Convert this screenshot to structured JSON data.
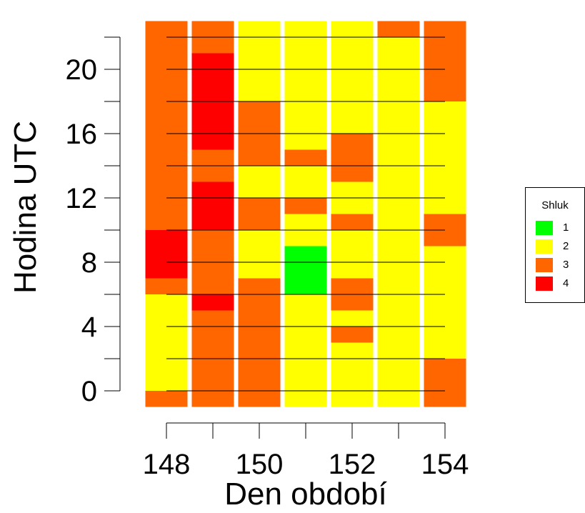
{
  "chart_data": {
    "type": "heatmap",
    "xlabel": "Den období",
    "ylabel": "Hodina UTC",
    "x_ticks": [
      "148",
      "150",
      "152",
      "154"
    ],
    "y_ticks": [
      "0",
      "4",
      "8",
      "12",
      "16",
      "20"
    ],
    "days": [
      148,
      149,
      150,
      151,
      152,
      153,
      154
    ],
    "hours_range": [
      -1,
      23
    ],
    "legend": {
      "title": "Shluk",
      "entries": [
        {
          "label": "1",
          "color": "#00ff00"
        },
        {
          "label": "2",
          "color": "#ffff00"
        },
        {
          "label": "3",
          "color": "#ff6600"
        },
        {
          "label": "4",
          "color": "#ff0000"
        }
      ]
    },
    "colors": {
      "1": "#00ff00",
      "2": "#ffff00",
      "3": "#ff6600",
      "4": "#ff0000"
    },
    "columns": [
      {
        "day": 148,
        "segments": [
          {
            "from": -1,
            "to": 0,
            "cluster": 3
          },
          {
            "from": 0,
            "to": 6,
            "cluster": 2
          },
          {
            "from": 6,
            "to": 7,
            "cluster": 3
          },
          {
            "from": 7,
            "to": 10,
            "cluster": 4
          },
          {
            "from": 10,
            "to": 23,
            "cluster": 3
          }
        ]
      },
      {
        "day": 149,
        "segments": [
          {
            "from": -1,
            "to": 5,
            "cluster": 3
          },
          {
            "from": 5,
            "to": 6,
            "cluster": 4
          },
          {
            "from": 6,
            "to": 10,
            "cluster": 3
          },
          {
            "from": 10,
            "to": 13,
            "cluster": 4
          },
          {
            "from": 13,
            "to": 15,
            "cluster": 3
          },
          {
            "from": 15,
            "to": 21,
            "cluster": 4
          },
          {
            "from": 21,
            "to": 23,
            "cluster": 3
          }
        ]
      },
      {
        "day": 150,
        "segments": [
          {
            "from": -1,
            "to": 7,
            "cluster": 3
          },
          {
            "from": 7,
            "to": 10,
            "cluster": 2
          },
          {
            "from": 10,
            "to": 12,
            "cluster": 3
          },
          {
            "from": 12,
            "to": 14,
            "cluster": 2
          },
          {
            "from": 14,
            "to": 18,
            "cluster": 3
          },
          {
            "from": 18,
            "to": 23,
            "cluster": 2
          }
        ]
      },
      {
        "day": 151,
        "segments": [
          {
            "from": -1,
            "to": 6,
            "cluster": 2
          },
          {
            "from": 6,
            "to": 9,
            "cluster": 1
          },
          {
            "from": 9,
            "to": 11,
            "cluster": 2
          },
          {
            "from": 11,
            "to": 12,
            "cluster": 3
          },
          {
            "from": 12,
            "to": 14,
            "cluster": 2
          },
          {
            "from": 14,
            "to": 15,
            "cluster": 3
          },
          {
            "from": 15,
            "to": 23,
            "cluster": 2
          }
        ]
      },
      {
        "day": 152,
        "segments": [
          {
            "from": -1,
            "to": 3,
            "cluster": 2
          },
          {
            "from": 3,
            "to": 4,
            "cluster": 3
          },
          {
            "from": 4,
            "to": 5,
            "cluster": 2
          },
          {
            "from": 5,
            "to": 7,
            "cluster": 3
          },
          {
            "from": 7,
            "to": 10,
            "cluster": 2
          },
          {
            "from": 10,
            "to": 11,
            "cluster": 3
          },
          {
            "from": 11,
            "to": 13,
            "cluster": 2
          },
          {
            "from": 13,
            "to": 16,
            "cluster": 3
          },
          {
            "from": 16,
            "to": 23,
            "cluster": 2
          }
        ]
      },
      {
        "day": 153,
        "segments": [
          {
            "from": -1,
            "to": 22,
            "cluster": 2
          },
          {
            "from": 22,
            "to": 23,
            "cluster": 3
          }
        ]
      },
      {
        "day": 154,
        "segments": [
          {
            "from": -1,
            "to": 2,
            "cluster": 3
          },
          {
            "from": 2,
            "to": 9,
            "cluster": 2
          },
          {
            "from": 9,
            "to": 11,
            "cluster": 3
          },
          {
            "from": 11,
            "to": 18,
            "cluster": 2
          },
          {
            "from": 18,
            "to": 23,
            "cluster": 3
          }
        ]
      }
    ],
    "gridlines_hours": [
      0,
      2,
      4,
      6,
      8,
      10,
      12,
      14,
      16,
      18,
      20,
      22
    ]
  }
}
